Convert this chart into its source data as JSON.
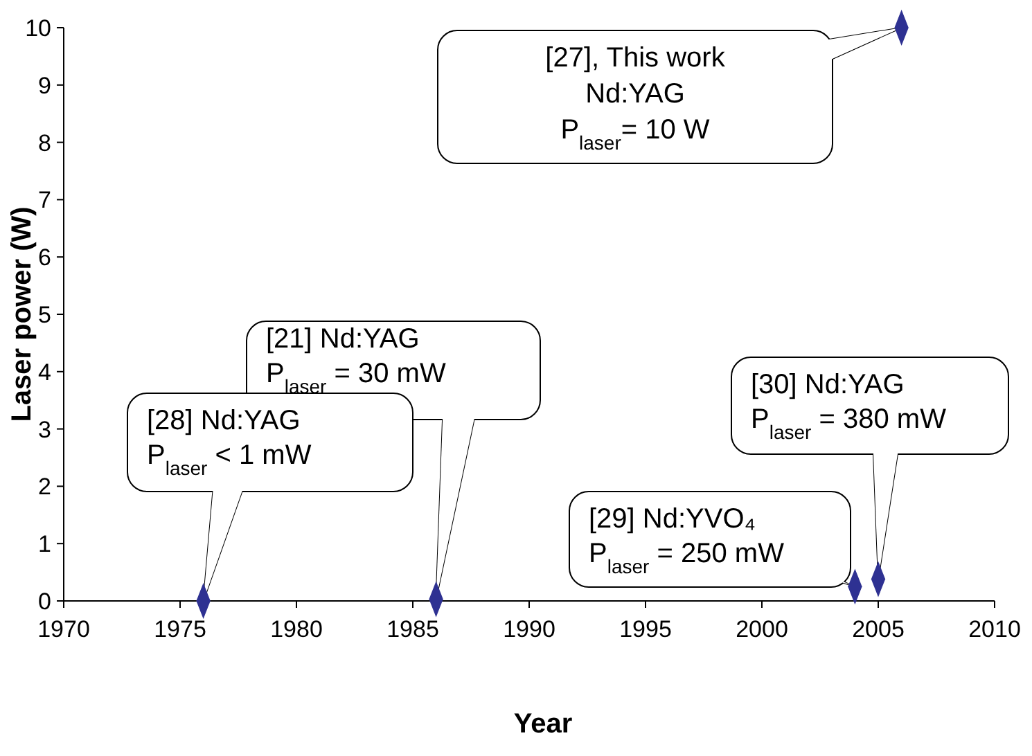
{
  "chart_data": {
    "type": "scatter",
    "xlabel": "Year",
    "ylabel": "Laser power (W)",
    "x": [
      1976,
      1986,
      2004,
      2005,
      2006
    ],
    "values": [
      0,
      0.03,
      0.25,
      0.38,
      10
    ],
    "color": "#2e3192",
    "marker": "diamond",
    "xlim": [
      1970,
      2010
    ],
    "xticks": [
      1970,
      1975,
      1980,
      1985,
      1990,
      1995,
      2000,
      2005,
      2010
    ],
    "ylim": [
      0,
      10
    ],
    "yticks": [
      0,
      1,
      2,
      3,
      4,
      5,
      6,
      7,
      8,
      9,
      10
    ],
    "grid": false,
    "annotations": [
      {
        "text": "[27], This work\nNd:YAG\nP$_{laser}$= 10 W",
        "x": 2006,
        "y": 10
      },
      {
        "text": "[21] Nd:YAG\nP$_{laser}$ = 30 mW",
        "x": 1986,
        "y": 0.03
      },
      {
        "text": "[28] Nd:YAG\nP$_{laser}$ < 1 mW",
        "x": 1976,
        "y": 0
      },
      {
        "text": "[29] Nd:YVO₄\nP$_{laser}$ = 250 mW",
        "x": 2004,
        "y": 0.25
      },
      {
        "text": "[30] Nd:YAG\nP$_{laser}$ = 380 mW",
        "x": 2005,
        "y": 0.38
      }
    ]
  }
}
